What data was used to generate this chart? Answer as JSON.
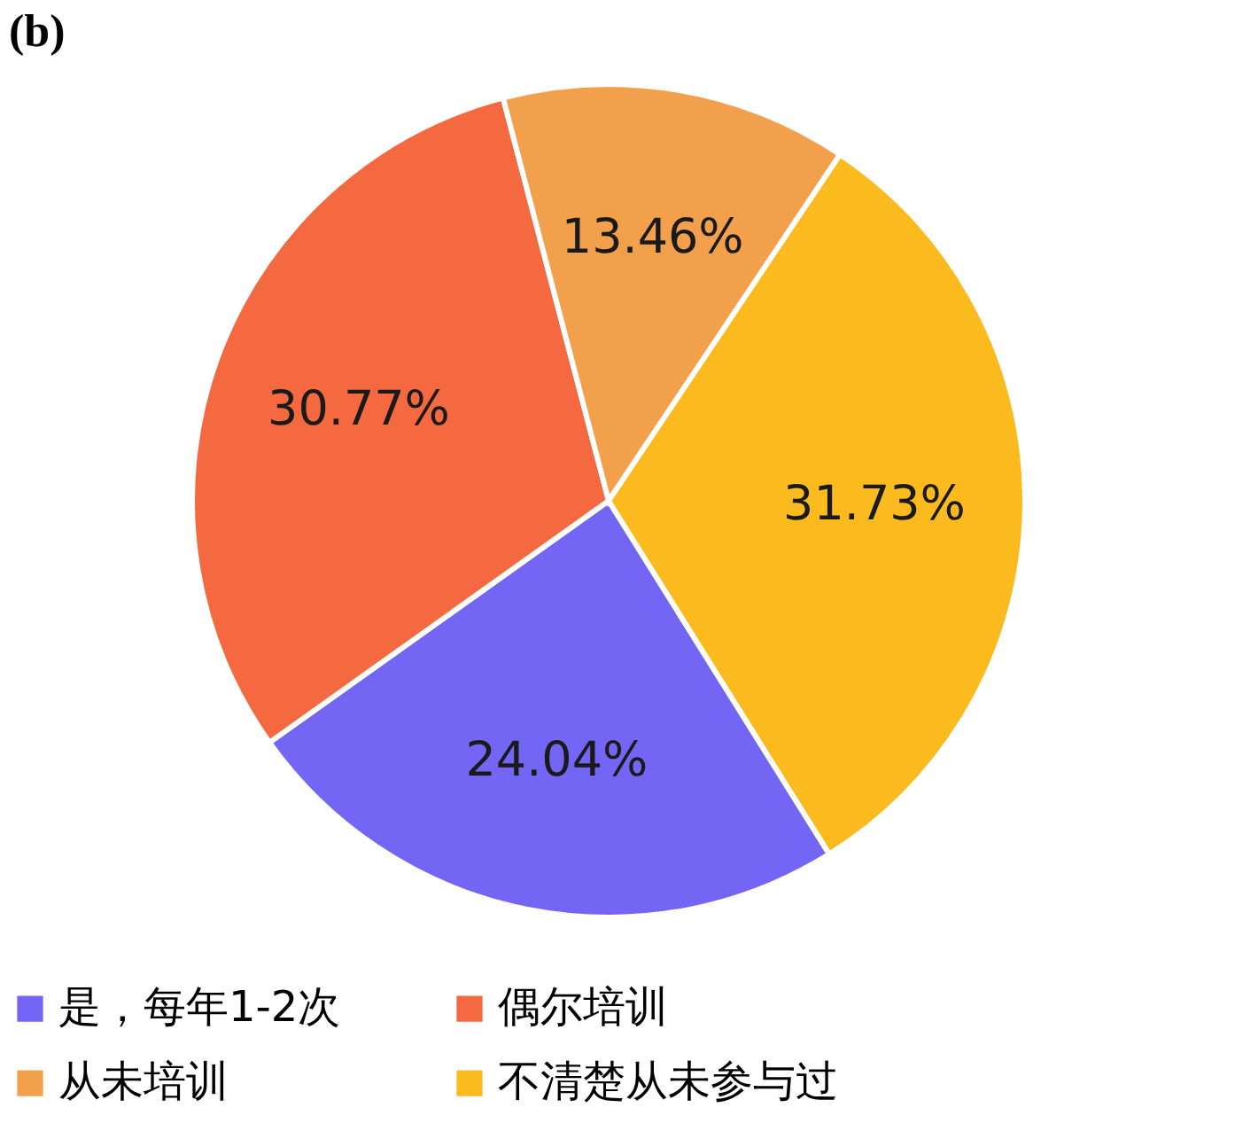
{
  "chart_data": {
    "type": "pie",
    "title": "(b)",
    "categories": [
      "是，每年1-2次",
      "偶尔培训",
      "从未培训",
      "不清楚从未参与过"
    ],
    "values": [
      24.04,
      30.77,
      13.46,
      31.73
    ],
    "colors": [
      "#7466f5",
      "#f4693f",
      "#f2a04c",
      "#fbba1e"
    ],
    "value_labels": [
      "24.04%",
      "30.77%",
      "13.46%",
      "31.73%"
    ],
    "legend": "bottom"
  }
}
